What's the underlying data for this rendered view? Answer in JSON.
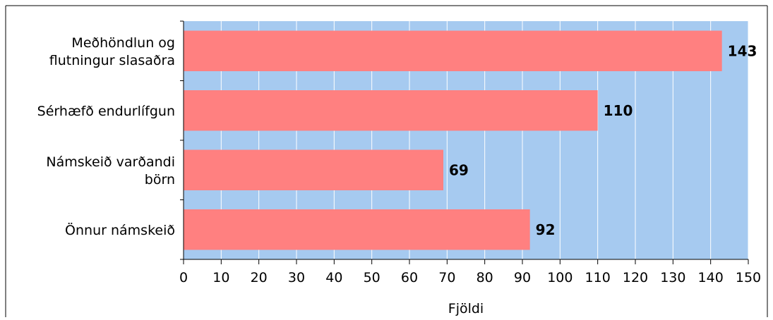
{
  "chart_data": {
    "type": "bar",
    "orientation": "horizontal",
    "categories": [
      [
        "Meðhöndlun og",
        "flutningur slasaðra"
      ],
      [
        "Sérhæfð endurlífgun"
      ],
      [
        "Námskeið varðandi",
        "börn"
      ],
      [
        "Önnur námskeið"
      ]
    ],
    "values": [
      143,
      110,
      69,
      92
    ],
    "data_labels": [
      "143",
      "110",
      "69",
      "92"
    ],
    "xlabel": "Fjöldi",
    "xlim": [
      0,
      150
    ],
    "x_ticks": [
      "0",
      "10",
      "20",
      "30",
      "40",
      "50",
      "60",
      "70",
      "80",
      "90",
      "100",
      "110",
      "120",
      "130",
      "140",
      "150"
    ],
    "grid": "vertical",
    "legend": "none",
    "colors": {
      "bar": "#ff8080",
      "plot_background": "#a6caf0",
      "gridline": "#ffffff",
      "axis": "#000000"
    }
  }
}
